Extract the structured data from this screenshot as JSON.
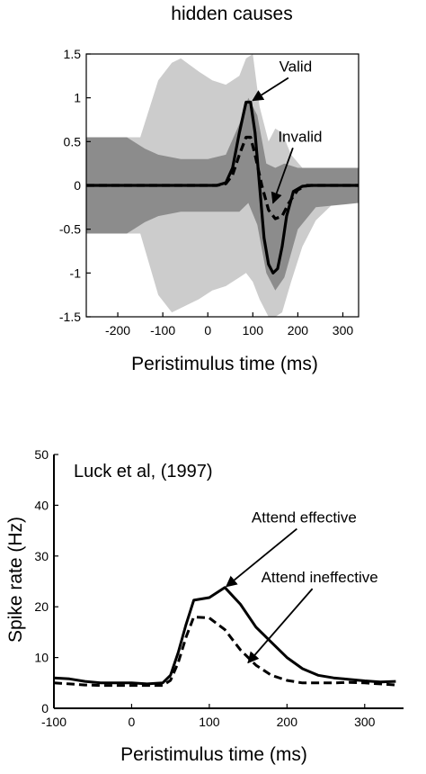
{
  "chart_data": [
    {
      "type": "line",
      "title": "hidden causes",
      "xlabel": "Peristimulus time (ms)",
      "ylabel": "",
      "xlim": [
        -270,
        335
      ],
      "ylim": [
        -1.5,
        1.5
      ],
      "xticks": [
        -200,
        -100,
        0,
        100,
        200,
        300
      ],
      "xtick_labels": [
        "-200",
        "-100",
        "0",
        "100",
        "200",
        "300"
      ],
      "yticks": [
        1.5,
        1,
        0.5,
        0,
        -0.5,
        -1,
        -1.5
      ],
      "ytick_labels": [
        "1.5",
        "1",
        "0.5",
        "0",
        "-0.5",
        "-1",
        "-1.5"
      ],
      "grid": false,
      "legend": "none",
      "colors": {
        "outer_band": "#cccccc",
        "inner_band": "#8c8c8c",
        "lines": "#000000"
      },
      "bands": [
        {
          "role": "outer",
          "x": [
            -270,
            -150,
            -110,
            -80,
            -60,
            -20,
            10,
            40,
            70,
            85,
            100,
            115,
            135,
            150,
            165,
            185,
            210,
            240,
            280,
            335
          ],
          "upper": [
            0.55,
            0.55,
            1.2,
            1.4,
            1.45,
            1.3,
            1.2,
            1.15,
            1.25,
            1.45,
            1.5,
            0.9,
            0.5,
            0.65,
            0.6,
            0.35,
            0.2,
            0.1,
            0.05,
            0.05
          ],
          "lower": [
            -0.55,
            -0.55,
            -1.25,
            -1.45,
            -1.4,
            -1.3,
            -1.2,
            -1.15,
            -1.05,
            -1.0,
            -1.1,
            -1.3,
            -1.5,
            -1.5,
            -1.45,
            -1.1,
            -0.7,
            -0.4,
            -0.2,
            -0.2
          ]
        },
        {
          "role": "inner",
          "x": [
            -270,
            -180,
            -140,
            -110,
            -60,
            0,
            40,
            70,
            90,
            110,
            130,
            150,
            170,
            200,
            240,
            335
          ],
          "upper": [
            0.55,
            0.55,
            0.42,
            0.35,
            0.3,
            0.3,
            0.35,
            0.7,
            1.0,
            0.8,
            0.25,
            0.2,
            0.25,
            0.2,
            0.2,
            0.2
          ],
          "lower": [
            -0.55,
            -0.55,
            -0.42,
            -0.35,
            -0.3,
            -0.3,
            -0.3,
            -0.3,
            -0.2,
            -0.45,
            -1.0,
            -1.2,
            -1.05,
            -0.5,
            -0.25,
            -0.2
          ]
        }
      ],
      "series": [
        {
          "name": "Valid",
          "style": "solid",
          "x": [
            -270,
            20,
            40,
            55,
            70,
            85,
            95,
            105,
            115,
            125,
            135,
            145,
            155,
            165,
            175,
            190,
            210,
            230,
            335
          ],
          "y": [
            0,
            0,
            0.03,
            0.2,
            0.6,
            0.95,
            0.95,
            0.6,
            0.0,
            -0.6,
            -0.9,
            -1.0,
            -0.95,
            -0.7,
            -0.35,
            -0.07,
            -0.01,
            0,
            0
          ]
        },
        {
          "name": "Invalid",
          "style": "dashed",
          "x": [
            -270,
            20,
            40,
            55,
            70,
            85,
            95,
            105,
            120,
            135,
            150,
            165,
            180,
            200,
            220,
            335
          ],
          "y": [
            0,
            0,
            0.02,
            0.12,
            0.35,
            0.55,
            0.55,
            0.35,
            0.0,
            -0.28,
            -0.38,
            -0.35,
            -0.2,
            -0.05,
            0,
            0
          ]
        }
      ],
      "annotations": [
        {
          "text": "Valid",
          "text_x": 195,
          "text_y": 1.3,
          "point_x": 100,
          "point_y": 0.97
        },
        {
          "text": "Invalid",
          "text_x": 205,
          "text_y": 0.5,
          "point_x": 145,
          "point_y": -0.2
        }
      ]
    },
    {
      "type": "line",
      "title": "",
      "xlabel": "Peristimulus time (ms)",
      "ylabel": "Spike rate (Hz)",
      "xlim": [
        -100,
        350
      ],
      "ylim": [
        0,
        50
      ],
      "xticks": [
        -100,
        0,
        100,
        200,
        300
      ],
      "xtick_labels": [
        "-100",
        "0",
        "100",
        "200",
        "300"
      ],
      "yticks": [
        0,
        10,
        20,
        30,
        40,
        50
      ],
      "ytick_labels": [
        "0",
        "10",
        "20",
        "30",
        "40",
        "50"
      ],
      "grid": false,
      "legend": "none",
      "inset_text": "Luck et al, (1997)",
      "series": [
        {
          "name": "Attend effective",
          "style": "solid",
          "x": [
            -100,
            -80,
            -60,
            -40,
            -20,
            0,
            20,
            40,
            50,
            60,
            70,
            80,
            100,
            120,
            140,
            160,
            180,
            200,
            220,
            240,
            260,
            280,
            300,
            320,
            340
          ],
          "y": [
            6,
            5.8,
            5.3,
            5.0,
            5.0,
            5.0,
            4.8,
            5.0,
            6.5,
            11,
            16.5,
            21.3,
            21.8,
            23.8,
            20.5,
            16,
            13,
            10,
            7.8,
            6.5,
            6,
            5.7,
            5.4,
            5.2,
            5.3
          ]
        },
        {
          "name": "Attend ineffective",
          "style": "dashed",
          "x": [
            -100,
            -80,
            -60,
            -40,
            -20,
            0,
            20,
            40,
            50,
            60,
            70,
            80,
            100,
            120,
            140,
            160,
            180,
            200,
            220,
            240,
            260,
            280,
            300,
            320,
            340
          ],
          "y": [
            5,
            4.8,
            4.6,
            4.5,
            4.5,
            4.5,
            4.5,
            4.5,
            5.5,
            9,
            14,
            18,
            17.8,
            15.5,
            11.5,
            8.5,
            6.5,
            5.5,
            5,
            5,
            5,
            5.1,
            5,
            4.8,
            4.6
          ]
        }
      ],
      "annotations": [
        {
          "text": "Attend effective",
          "text_x": 222,
          "text_y": 36.6,
          "point_x": 122,
          "point_y": 24
        },
        {
          "text": "Attend ineffective",
          "text_x": 242,
          "text_y": 24.8,
          "point_x": 150,
          "point_y": 9
        }
      ]
    }
  ]
}
